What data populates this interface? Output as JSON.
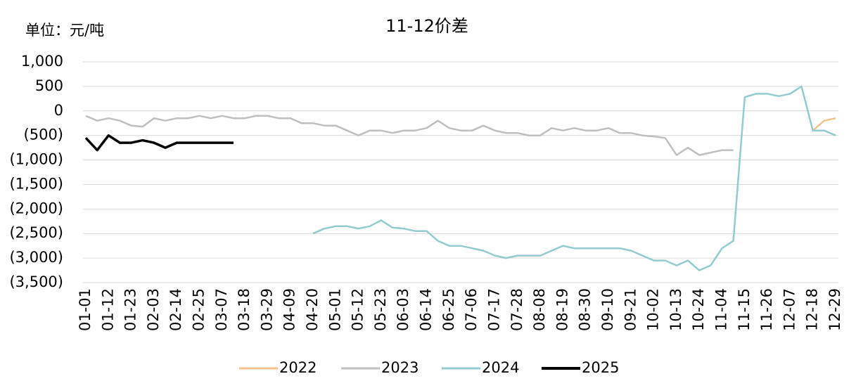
{
  "chart_data": {
    "type": "line",
    "title": "11-12价差",
    "y_label": "单位：元/吨",
    "categories": [
      "01-01",
      null,
      "01-12",
      null,
      "01-23",
      null,
      "02-03",
      null,
      "02-14",
      null,
      "02-25",
      null,
      "03-07",
      null,
      "03-18",
      null,
      "03-29",
      null,
      "04-09",
      null,
      "04-20",
      null,
      "05-01",
      null,
      "05-12",
      null,
      "05-23",
      null,
      "06-03",
      null,
      "06-14",
      null,
      "06-25",
      null,
      "07-06",
      null,
      "07-17",
      null,
      "07-28",
      null,
      "08-08",
      null,
      "08-19",
      null,
      "08-30",
      null,
      "09-10",
      null,
      "09-21",
      null,
      "10-02",
      null,
      "10-13",
      null,
      "10-24",
      null,
      "11-04",
      null,
      "11-15",
      null,
      "11-26",
      null,
      "12-07",
      null,
      "12-18",
      null,
      "12-29"
    ],
    "series": [
      {
        "name": "2022",
        "color": "#f2c28c",
        "values": [
          null,
          null,
          null,
          null,
          null,
          null,
          null,
          null,
          null,
          null,
          null,
          null,
          null,
          null,
          null,
          null,
          null,
          null,
          null,
          null,
          null,
          null,
          null,
          null,
          null,
          null,
          null,
          null,
          null,
          null,
          null,
          null,
          null,
          null,
          null,
          null,
          null,
          null,
          null,
          null,
          null,
          null,
          null,
          null,
          null,
          null,
          null,
          null,
          null,
          null,
          null,
          null,
          null,
          null,
          null,
          null,
          null,
          null,
          null,
          null,
          null,
          null,
          null,
          null,
          -400,
          -200,
          -150
        ]
      },
      {
        "name": "2023",
        "color": "#bfbfbf",
        "values": [
          -100,
          -200,
          -150,
          -200,
          -300,
          -320,
          -150,
          -200,
          -150,
          -150,
          -100,
          -150,
          -100,
          -150,
          -150,
          -100,
          -100,
          -150,
          -150,
          -250,
          -250,
          -300,
          -300,
          -400,
          -500,
          -400,
          -400,
          -450,
          -400,
          -400,
          -350,
          -200,
          -350,
          -400,
          -400,
          -300,
          -400,
          -450,
          -450,
          -500,
          -500,
          -350,
          -400,
          -350,
          -400,
          -400,
          -350,
          -450,
          -450,
          -500,
          -520,
          -550,
          -900,
          -750,
          -900,
          -850,
          -800,
          -800,
          null,
          null,
          null,
          null,
          null,
          null,
          null,
          null,
          null
        ]
      },
      {
        "name": "2024",
        "color": "#93cbd0",
        "values": [
          null,
          null,
          null,
          null,
          null,
          null,
          null,
          null,
          null,
          null,
          null,
          null,
          null,
          null,
          null,
          null,
          null,
          null,
          null,
          null,
          -2500,
          -2400,
          -2350,
          -2350,
          -2400,
          -2350,
          -2230,
          -2380,
          -2400,
          -2450,
          -2450,
          -2650,
          -2750,
          -2750,
          -2800,
          -2850,
          -2950,
          -3000,
          -2950,
          -2950,
          -2950,
          -2850,
          -2750,
          -2800,
          -2800,
          -2800,
          -2800,
          -2800,
          -2850,
          -2950,
          -3050,
          -3050,
          -3150,
          -3050,
          -3250,
          -3150,
          -2800,
          -2650,
          280,
          350,
          350,
          300,
          350,
          500,
          -400,
          -400,
          -500
        ]
      },
      {
        "name": "2025",
        "color": "#000000",
        "values": [
          -550,
          -800,
          -500,
          -650,
          -650,
          -600,
          -650,
          -750,
          -650,
          -650,
          -650,
          -650,
          -650,
          -650,
          null,
          null,
          null,
          null,
          null,
          null,
          null,
          null,
          null,
          null,
          null,
          null,
          null,
          null,
          null,
          null,
          null,
          null,
          null,
          null,
          null,
          null,
          null,
          null,
          null,
          null,
          null,
          null,
          null,
          null,
          null,
          null,
          null,
          null,
          null,
          null,
          null,
          null,
          null,
          null,
          null,
          null,
          null,
          null,
          null,
          null,
          null,
          null,
          null,
          null,
          null,
          null,
          null
        ]
      }
    ],
    "ylim": [
      -3500,
      1000
    ],
    "yticks": [
      {
        "value": 1000,
        "label": "1,000"
      },
      500,
      0,
      {
        "value": -500,
        "label": "(500)"
      },
      {
        "value": -1000,
        "label": "(1,000)"
      },
      {
        "value": -1500,
        "label": "(1,500)"
      },
      {
        "value": -2000,
        "label": "(2,000)"
      },
      {
        "value": -2500,
        "label": "(2,500)"
      },
      {
        "value": -3000,
        "label": "(3,000)"
      },
      {
        "value": -3500,
        "label": "(3,500)"
      }
    ],
    "negative_tick_color": "#ff0000",
    "grid": true,
    "legend": "bottom"
  }
}
